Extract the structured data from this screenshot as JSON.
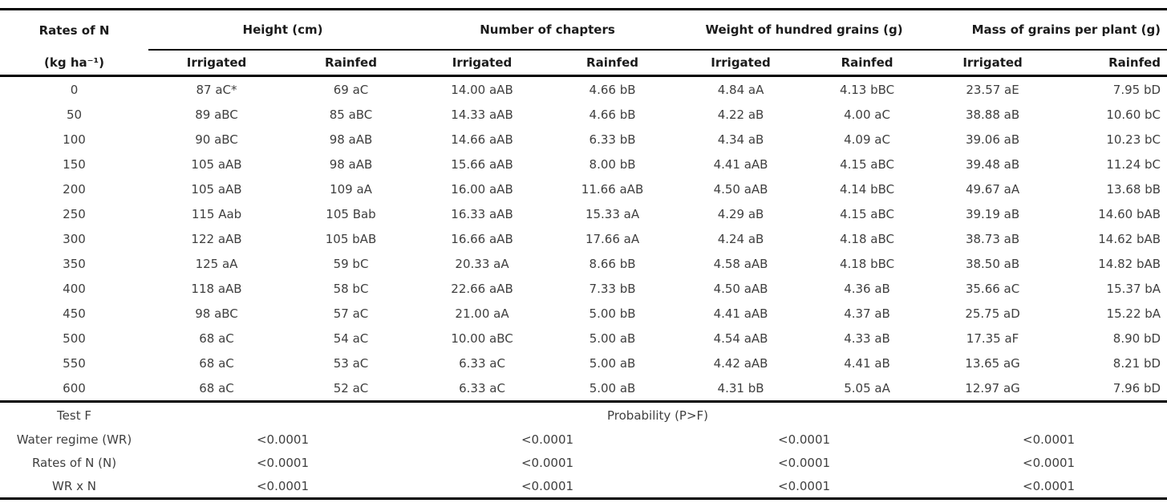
{
  "table": {
    "col1_header_line1": "Rates of N",
    "col1_header_line2": "(kg ha⁻¹)",
    "groups": [
      {
        "label": "Height (cm)"
      },
      {
        "label": "Number of chapters"
      },
      {
        "label": "Weight of hundred grains (g)"
      },
      {
        "label": "Mass of grains per plant (g)"
      }
    ],
    "subheaders": [
      "Irrigated",
      "Rainfed",
      "Irrigated",
      "Rainfed",
      "Irrigated",
      "Rainfed",
      "Irrigated",
      "Rainfed"
    ],
    "rows": [
      {
        "rate": "0",
        "values": [
          "87 aC*",
          "69 aC",
          "14.00 aAB",
          "4.66 bB",
          "4.84 aA",
          "4.13 bBC",
          "23.57 aE",
          "7.95 bD"
        ]
      },
      {
        "rate": "50",
        "values": [
          "89 aBC",
          "85 aBC",
          "14.33 aAB",
          "4.66 bB",
          "4.22 aB",
          "4.00 aC",
          "38.88 aB",
          "10.60 bC"
        ]
      },
      {
        "rate": "100",
        "values": [
          "90 aBC",
          "98 aAB",
          "14.66 aAB",
          "6.33 bB",
          "4.34 aB",
          "4.09 aC",
          "39.06 aB",
          "10.23 bC"
        ]
      },
      {
        "rate": "150",
        "values": [
          "105 aAB",
          "98 aAB",
          "15.66 aAB",
          "8.00 bB",
          "4.41 aAB",
          "4.15 aBC",
          "39.48 aB",
          "11.24 bC"
        ]
      },
      {
        "rate": "200",
        "values": [
          "105 aAB",
          "109 aA",
          "16.00 aAB",
          "11.66 aAB",
          "4.50 aAB",
          "4.14 bBC",
          "49.67 aA",
          "13.68 bB"
        ]
      },
      {
        "rate": "250",
        "values": [
          "115 Aab",
          "105 Bab",
          "16.33 aAB",
          "15.33 aA",
          "4.29 aB",
          "4.15 aBC",
          "39.19 aB",
          "14.60 bAB"
        ]
      },
      {
        "rate": "300",
        "values": [
          "122 aAB",
          "105 bAB",
          "16.66 aAB",
          "17.66 aA",
          "4.24 aB",
          "4.18 aBC",
          "38.73 aB",
          "14.62 bAB"
        ]
      },
      {
        "rate": "350",
        "values": [
          "125 aA",
          "59 bC",
          "20.33 aA",
          "8.66 bB",
          "4.58 aAB",
          "4.18 bBC",
          "38.50 aB",
          "14.82 bAB"
        ]
      },
      {
        "rate": "400",
        "values": [
          "118 aAB",
          "58 bC",
          "22.66 aAB",
          "7.33 bB",
          "4.50 aAB",
          "4.36 aB",
          "35.66 aC",
          "15.37 bA"
        ]
      },
      {
        "rate": "450",
        "values": [
          "98 aBC",
          "57 aC",
          "21.00 aA",
          "5.00 bB",
          "4.41 aAB",
          "4.37 aB",
          "25.75 aD",
          "15.22 bA"
        ]
      },
      {
        "rate": "500",
        "values": [
          "68 aC",
          "54 aC",
          "10.00 aBC",
          "5.00 aB",
          "4.54 aAB",
          "4.33 aB",
          "17.35 aF",
          "8.90 bD"
        ]
      },
      {
        "rate": "550",
        "values": [
          "68 aC",
          "53 aC",
          "6.33 aC",
          "5.00 aB",
          "4.42 aAB",
          "4.41 aB",
          "13.65 aG",
          "8.21 bD"
        ]
      },
      {
        "rate": "600",
        "values": [
          "68 aC",
          "52 aC",
          "6.33 aC",
          "5.00 aB",
          "4.31 bB",
          "5.05 aA",
          "12.97 aG",
          "7.96 bD"
        ]
      }
    ],
    "footer": {
      "test_f_label": "Test F",
      "probability_label": "Probability (P>F)",
      "rows": [
        {
          "label": "Water regime (WR)",
          "values": [
            "<0.0001",
            "<0.0001",
            "<0.0001",
            "<0.0001"
          ]
        },
        {
          "label": "Rates of N (N)",
          "values": [
            "<0.0001",
            "<0.0001",
            "<0.0001",
            "<0.0001"
          ]
        },
        {
          "label": "WR x N",
          "values": [
            "<0.0001",
            "<0.0001",
            "<0.0001",
            "<0.0001"
          ]
        }
      ]
    }
  }
}
